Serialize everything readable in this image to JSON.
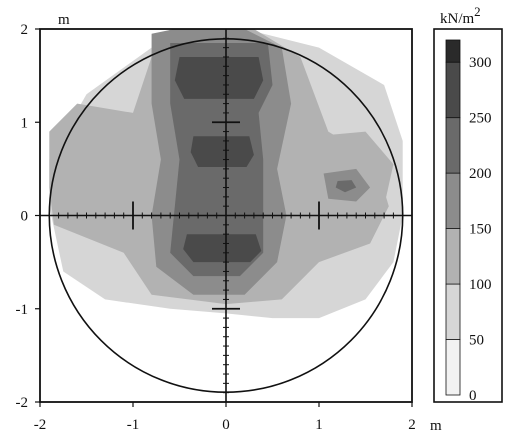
{
  "chart_data": {
    "type": "heatmap",
    "title": "",
    "x_unit": "m",
    "y_unit": "m",
    "xlim": [
      -2,
      2
    ],
    "ylim": [
      -2,
      2
    ],
    "x_ticks": [
      "-2",
      "-1",
      "0",
      "1",
      "2"
    ],
    "y_ticks": [
      "2",
      "1",
      "0",
      "-1",
      "-2"
    ],
    "x_tick_values": [
      -2,
      -1,
      0,
      1,
      2
    ],
    "y_tick_values": [
      2,
      1,
      0,
      -1,
      -2
    ],
    "circle_radius": 1.9,
    "colorbar": {
      "unit": "kN/m",
      "unit_superscript": "2",
      "tick_labels": [
        "300",
        "250",
        "200",
        "150",
        "100",
        "50",
        "0"
      ],
      "tick_values": [
        300,
        250,
        200,
        150,
        100,
        50,
        0
      ],
      "range": [
        0,
        320
      ],
      "level_colors": [
        "#f2f2f2",
        "#d6d6d6",
        "#b2b2b2",
        "#8c8c8c",
        "#6a6a6a",
        "#4a4a4a",
        "#2a2a2a"
      ]
    },
    "contour_levels": [
      {
        "level": 50,
        "color": "#d6d6d6",
        "polygon": [
          [
            -1.9,
            0.6
          ],
          [
            -1.5,
            1.3
          ],
          [
            -0.8,
            1.8
          ],
          [
            -0.6,
            2.0
          ],
          [
            0.2,
            2.0
          ],
          [
            1.0,
            1.8
          ],
          [
            1.7,
            1.4
          ],
          [
            1.9,
            0.8
          ],
          [
            1.9,
            0.0
          ],
          [
            1.8,
            -0.5
          ],
          [
            1.5,
            -0.9
          ],
          [
            1.0,
            -1.1
          ],
          [
            0.5,
            -1.1
          ],
          [
            0.0,
            -1.05
          ],
          [
            -0.6,
            -1.0
          ],
          [
            -1.3,
            -0.9
          ],
          [
            -1.75,
            -0.6
          ],
          [
            -1.9,
            0.1
          ]
        ]
      },
      {
        "level": 100,
        "color": "#b2b2b2",
        "polygon": [
          [
            -1.9,
            0.9
          ],
          [
            -1.6,
            1.2
          ],
          [
            -1.0,
            1.1
          ],
          [
            -0.8,
            1.7
          ],
          [
            -0.5,
            2.0
          ],
          [
            0.3,
            2.0
          ],
          [
            0.8,
            1.7
          ],
          [
            1.1,
            0.9
          ],
          [
            1.6,
            0.6
          ],
          [
            1.75,
            0.1
          ],
          [
            1.55,
            -0.3
          ],
          [
            1.0,
            -0.5
          ],
          [
            0.6,
            -0.9
          ],
          [
            0.0,
            -0.95
          ],
          [
            -0.8,
            -0.85
          ],
          [
            -1.1,
            -0.4
          ],
          [
            -1.85,
            -0.1
          ],
          [
            -1.9,
            0.3
          ]
        ]
      },
      {
        "level": 150,
        "color": "#8c8c8c",
        "polygon": [
          [
            -0.8,
            1.95
          ],
          [
            -0.3,
            2.05
          ],
          [
            0.2,
            2.0
          ],
          [
            0.6,
            1.8
          ],
          [
            0.7,
            1.2
          ],
          [
            0.55,
            0.5
          ],
          [
            0.65,
            0.0
          ],
          [
            0.55,
            -0.5
          ],
          [
            0.2,
            -0.85
          ],
          [
            -0.35,
            -0.85
          ],
          [
            -0.75,
            -0.55
          ],
          [
            -0.8,
            0.0
          ],
          [
            -0.7,
            0.6
          ],
          [
            -0.8,
            1.2
          ]
        ]
      },
      {
        "level": 200,
        "color": "#6a6a6a",
        "polygon": [
          [
            -0.6,
            1.85
          ],
          [
            0.45,
            1.85
          ],
          [
            0.5,
            1.4
          ],
          [
            0.35,
            1.1
          ],
          [
            0.4,
            0.6
          ],
          [
            0.4,
            -0.4
          ],
          [
            0.15,
            -0.65
          ],
          [
            -0.35,
            -0.65
          ],
          [
            -0.6,
            -0.4
          ],
          [
            -0.5,
            0.6
          ],
          [
            -0.6,
            1.2
          ]
        ]
      },
      {
        "level": 250,
        "color": "#4a4a4a",
        "polygon": [
          [
            -0.5,
            1.7
          ],
          [
            0.35,
            1.7
          ],
          [
            0.4,
            1.45
          ],
          [
            0.3,
            1.25
          ],
          [
            -0.45,
            1.25
          ],
          [
            -0.55,
            1.45
          ]
        ]
      },
      {
        "level": 250,
        "color": "#4a4a4a",
        "polygon": [
          [
            -0.35,
            0.85
          ],
          [
            0.25,
            0.85
          ],
          [
            0.3,
            0.65
          ],
          [
            0.22,
            0.52
          ],
          [
            -0.3,
            0.52
          ],
          [
            -0.38,
            0.68
          ]
        ]
      },
      {
        "level": 250,
        "color": "#4a4a4a",
        "polygon": [
          [
            -0.42,
            -0.2
          ],
          [
            0.32,
            -0.2
          ],
          [
            0.38,
            -0.38
          ],
          [
            0.26,
            -0.5
          ],
          [
            -0.35,
            -0.5
          ],
          [
            -0.46,
            -0.36
          ]
        ]
      },
      {
        "level": 100,
        "color": "#b2b2b2",
        "polygon": [
          [
            0.95,
            0.85
          ],
          [
            1.5,
            0.9
          ],
          [
            1.8,
            0.55
          ],
          [
            1.7,
            0.1
          ],
          [
            1.3,
            -0.05
          ],
          [
            1.0,
            0.15
          ]
        ]
      },
      {
        "level": 150,
        "color": "#8c8c8c",
        "polygon": [
          [
            1.05,
            0.45
          ],
          [
            1.4,
            0.5
          ],
          [
            1.55,
            0.3
          ],
          [
            1.4,
            0.15
          ],
          [
            1.1,
            0.18
          ]
        ]
      },
      {
        "level": 200,
        "color": "#6a6a6a",
        "polygon": [
          [
            1.2,
            0.37
          ],
          [
            1.35,
            0.38
          ],
          [
            1.4,
            0.3
          ],
          [
            1.28,
            0.25
          ],
          [
            1.18,
            0.3
          ]
        ]
      }
    ]
  }
}
